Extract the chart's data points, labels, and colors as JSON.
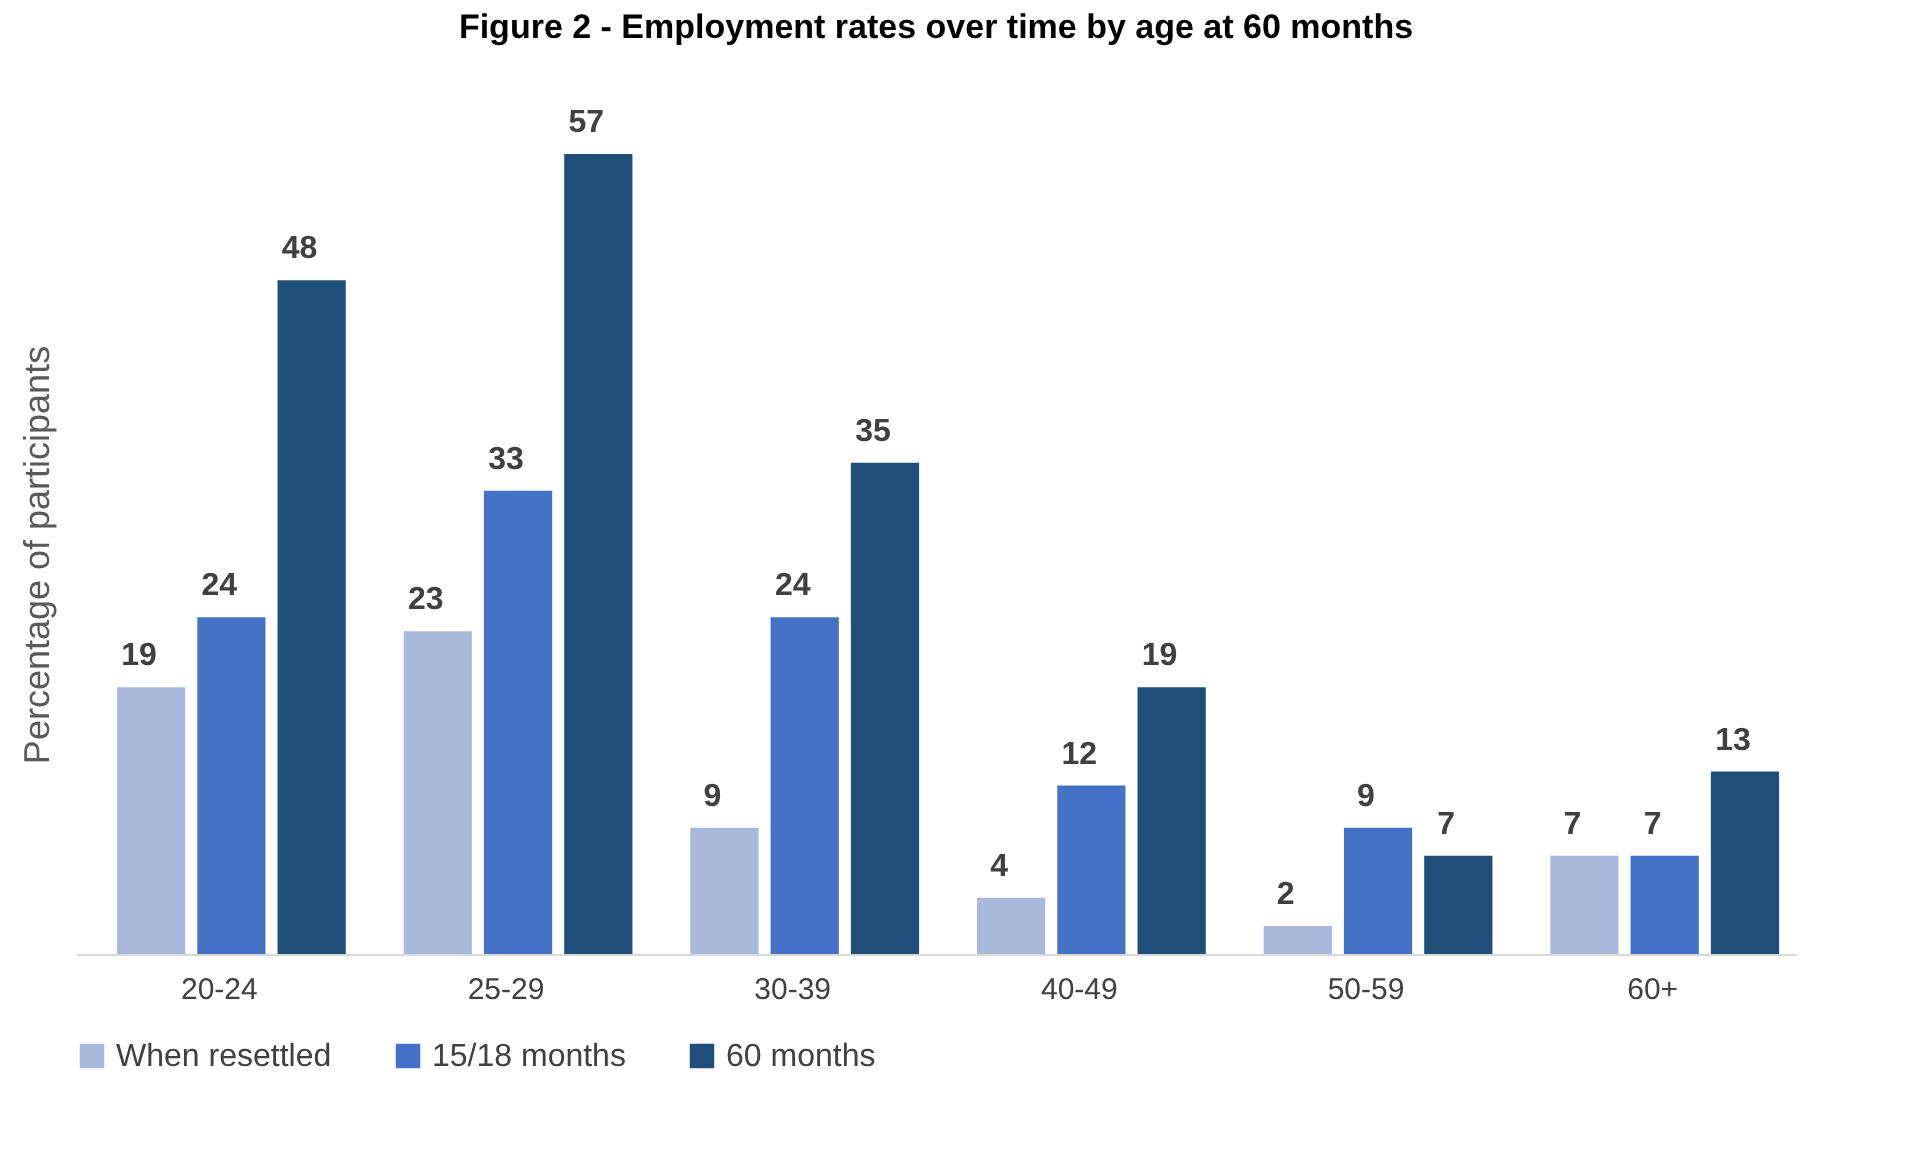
{
  "chart_data": {
    "type": "bar",
    "title": "Figure 2 - Employment rates over time by age at 60 months",
    "ylabel": "Percentage of participants",
    "categories": [
      "20-24",
      "25-29",
      "30-39",
      "40-49",
      "50-59",
      "60+"
    ],
    "series": [
      {
        "name": "When resettled",
        "color": "#a9b9dc",
        "values": [
          19,
          23,
          9,
          4,
          2,
          7
        ]
      },
      {
        "name": "15/18 months",
        "color": "#4472c4",
        "values": [
          24,
          33,
          24,
          12,
          9,
          7
        ]
      },
      {
        "name": "60 months",
        "color": "#1f4e79",
        "values": [
          48,
          57,
          35,
          19,
          7,
          13
        ]
      }
    ],
    "data_labels": true,
    "legend": "bottom",
    "grid": false
  }
}
